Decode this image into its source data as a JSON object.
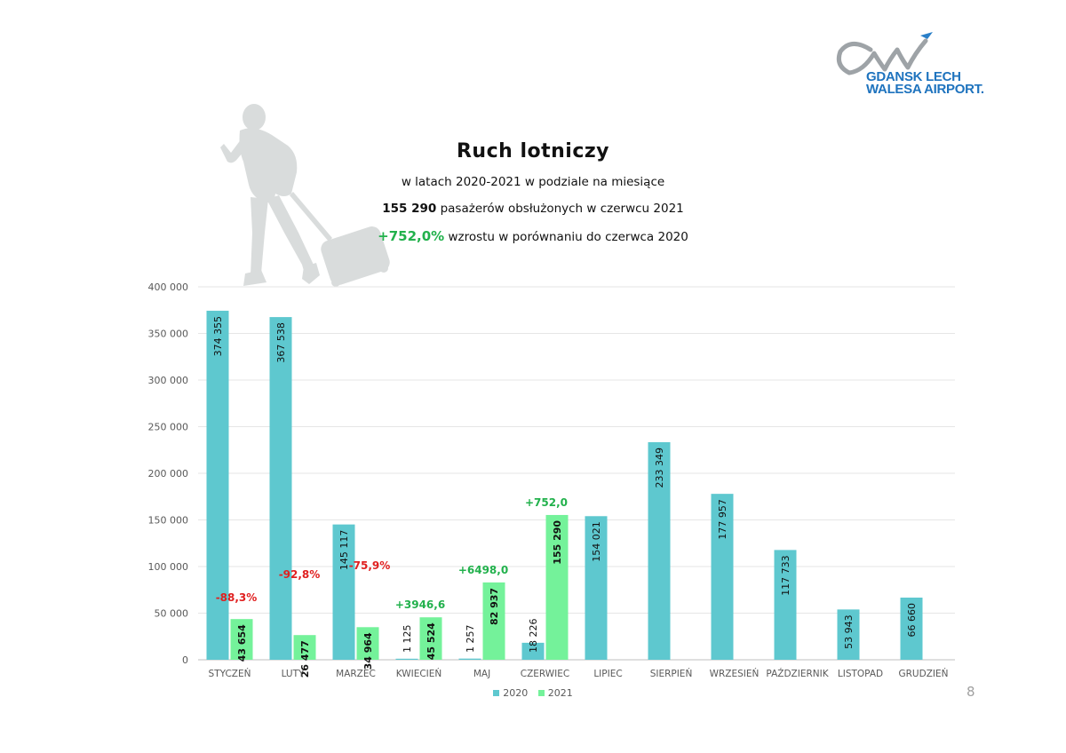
{
  "logo": {
    "line1": "GDANSK LECH",
    "line2": "WALESA AIRPORT."
  },
  "header": {
    "title": "Ruch lotniczy",
    "subtitle": "w latach 2020-2021 w podziale na miesiące",
    "highlight_value": "155 290",
    "highlight_text": "pasażerów obsłużonych w czerwcu 2021",
    "growth_value": "+752,0%",
    "growth_text": "wzrostu w porównaniu do czerwca 2020"
  },
  "page_number": "8",
  "colors": {
    "s2020": "#5ec8cf",
    "s2021": "#74f29a",
    "negative": "#e02020",
    "positive": "#22b14c"
  },
  "chart_data": {
    "type": "bar",
    "categories": [
      "STYCZEŃ",
      "LUTY",
      "MARZEC",
      "KWIECIEŃ",
      "MAJ",
      "CZERWIEC",
      "LIPIEC",
      "SIERPIEŃ",
      "WRZESIEŃ",
      "PAŹDZIERNIK",
      "LISTOPAD",
      "GRUDZIEŃ"
    ],
    "series": [
      {
        "name": "2020",
        "values": [
          374355,
          367538,
          145117,
          1125,
          1257,
          18226,
          154021,
          233349,
          177957,
          117733,
          53943,
          66660
        ],
        "labels": [
          "374 355",
          "367 538",
          "145 117",
          "1 125",
          "1 257",
          "18 226",
          "154 021",
          "233 349",
          "177 957",
          "117 733",
          "53 943",
          "66 660"
        ]
      },
      {
        "name": "2021",
        "values": [
          43654,
          26477,
          34964,
          45524,
          82937,
          155290,
          null,
          null,
          null,
          null,
          null,
          null
        ],
        "labels": [
          "43 654",
          "26 477",
          "34 964",
          "45 524",
          "82 937",
          "155 290",
          "",
          "",
          "",
          "",
          "",
          ""
        ]
      }
    ],
    "annotations": [
      "-88,3%",
      "-92,8%",
      "-75,9%",
      "+3946,6",
      "+6498,0",
      "+752,0",
      "",
      "",
      "",
      "",
      "",
      ""
    ],
    "y_ticks": [
      0,
      50000,
      100000,
      150000,
      200000,
      250000,
      300000,
      350000,
      400000
    ],
    "y_tick_labels": [
      "0",
      "50 000",
      "100 000",
      "150 000",
      "200 000",
      "250 000",
      "300 000",
      "350 000",
      "400 000"
    ],
    "ylim": [
      0,
      400000
    ],
    "grid": true,
    "legend": "bottom"
  }
}
